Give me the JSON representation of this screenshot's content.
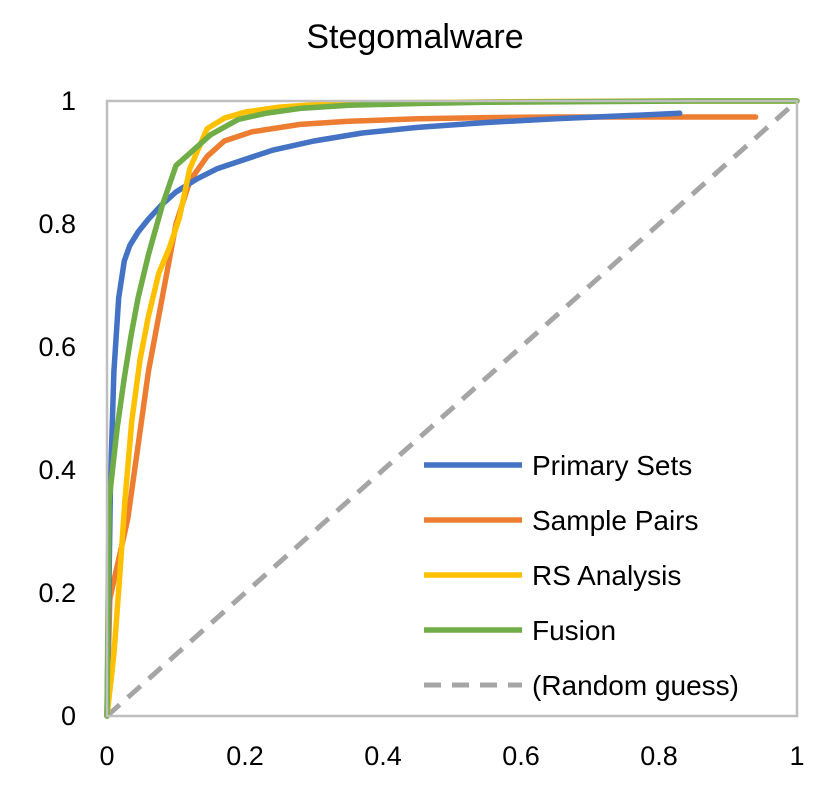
{
  "chart_data": {
    "type": "line",
    "title": "Stegomalware",
    "xlabel": "",
    "ylabel": "",
    "xlim": [
      0,
      1
    ],
    "ylim": [
      0,
      1
    ],
    "x_ticks": [
      "0",
      "0.2",
      "0.4",
      "0.6",
      "0.8",
      "1"
    ],
    "x_tick_values": [
      0,
      0.2,
      0.4,
      0.6,
      0.8,
      1
    ],
    "y_ticks": [
      "0",
      "0.2",
      "0.4",
      "0.6",
      "0.8",
      "1"
    ],
    "y_tick_values": [
      0,
      0.2,
      0.4,
      0.6,
      0.8,
      1
    ],
    "grid": false,
    "legend_position": "bottom-right",
    "series": [
      {
        "name": "Primary Sets",
        "color": "#4472C4",
        "dash": "solid",
        "x": [
          0,
          0.005,
          0.01,
          0.017,
          0.025,
          0.033,
          0.045,
          0.06,
          0.08,
          0.1,
          0.13,
          0.16,
          0.2,
          0.24,
          0.3,
          0.37,
          0.45,
          0.55,
          0.65,
          0.75,
          0.83
        ],
        "y": [
          0,
          0.38,
          0.56,
          0.68,
          0.74,
          0.765,
          0.787,
          0.808,
          0.832,
          0.852,
          0.873,
          0.89,
          0.905,
          0.92,
          0.935,
          0.948,
          0.957,
          0.965,
          0.971,
          0.976,
          0.98
        ]
      },
      {
        "name": "Sample Pairs",
        "color": "#ED7D31",
        "dash": "solid",
        "x": [
          0,
          0.004,
          0.01,
          0.02,
          0.03,
          0.045,
          0.06,
          0.08,
          0.1,
          0.12,
          0.145,
          0.17,
          0.21,
          0.28,
          0.35,
          0.45,
          0.55,
          0.65,
          0.75,
          0.85,
          0.94
        ],
        "y": [
          0,
          0.19,
          0.22,
          0.27,
          0.32,
          0.44,
          0.56,
          0.68,
          0.8,
          0.87,
          0.91,
          0.935,
          0.95,
          0.962,
          0.967,
          0.971,
          0.973,
          0.974,
          0.974,
          0.974,
          0.974
        ]
      },
      {
        "name": "RS Analysis",
        "color": "#FFC000",
        "dash": "solid",
        "x": [
          0,
          0.01,
          0.018,
          0.026,
          0.036,
          0.048,
          0.06,
          0.075,
          0.09,
          0.105,
          0.12,
          0.145,
          0.17,
          0.2,
          0.25,
          0.3,
          0.4,
          0.5,
          0.6,
          0.8,
          1.0
        ],
        "y": [
          0,
          0.1,
          0.22,
          0.35,
          0.48,
          0.58,
          0.65,
          0.72,
          0.76,
          0.81,
          0.89,
          0.955,
          0.972,
          0.982,
          0.99,
          0.994,
          0.997,
          0.998,
          0.999,
          1.0,
          1.0
        ]
      },
      {
        "name": "Fusion",
        "color": "#70AD47",
        "dash": "solid",
        "x": [
          0,
          0.003,
          0.008,
          0.015,
          0.025,
          0.035,
          0.045,
          0.06,
          0.08,
          0.1,
          0.12,
          0.15,
          0.19,
          0.23,
          0.28,
          0.35,
          0.45,
          0.55,
          0.7,
          0.85,
          1.0
        ],
        "y": [
          0,
          0.35,
          0.4,
          0.47,
          0.55,
          0.62,
          0.68,
          0.75,
          0.83,
          0.895,
          0.915,
          0.945,
          0.97,
          0.98,
          0.988,
          0.993,
          0.996,
          0.998,
          0.999,
          1.0,
          1.0
        ]
      },
      {
        "name": "(Random guess)",
        "color": "#A5A5A5",
        "dash": "dashed",
        "x": [
          0,
          1
        ],
        "y": [
          0,
          1
        ]
      }
    ]
  }
}
